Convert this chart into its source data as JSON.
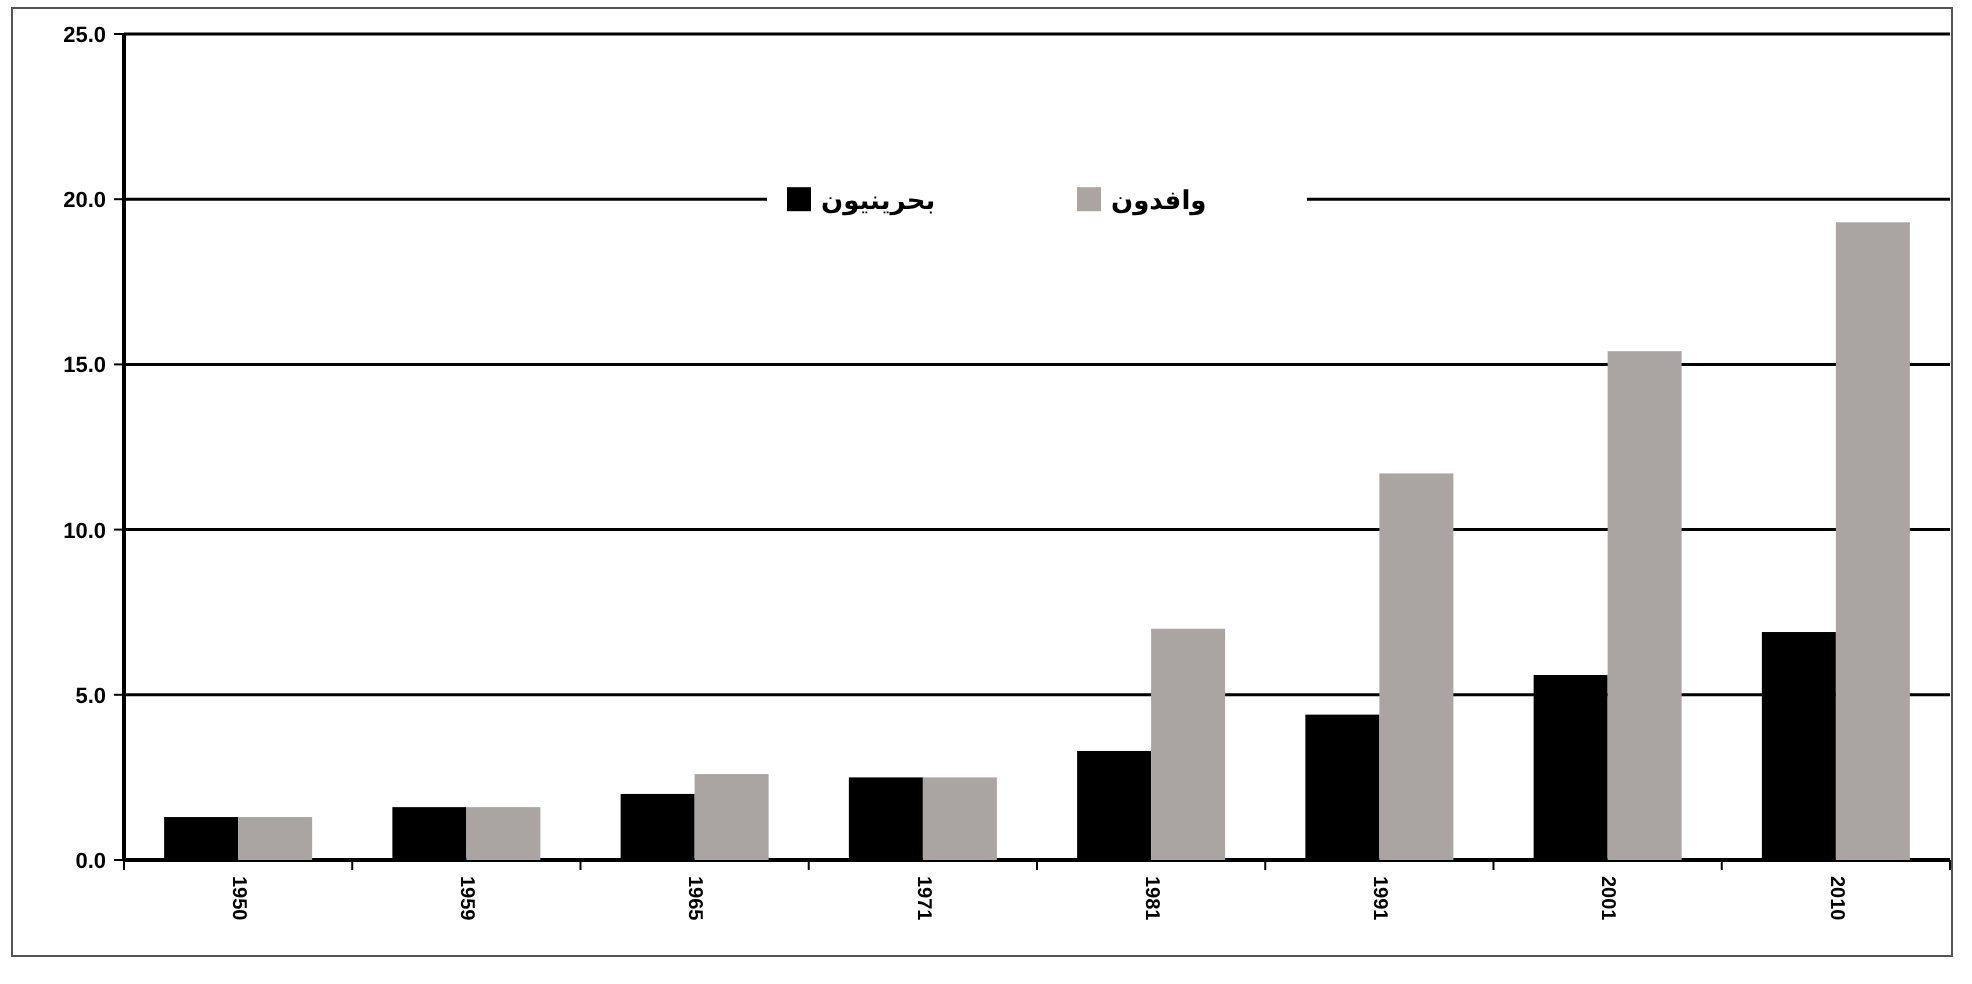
{
  "chart_data": {
    "type": "bar",
    "categories": [
      "1950",
      "1959",
      "1965",
      "1971",
      "1981",
      "1991",
      "2001",
      "2010"
    ],
    "series": [
      {
        "name": "بحرينيون",
        "color": "#000000",
        "values": [
          1.3,
          1.6,
          2.0,
          2.5,
          3.3,
          4.4,
          5.6,
          6.9
        ]
      },
      {
        "name": "وافدون",
        "color": "#aaa5a3",
        "values": [
          1.3,
          1.6,
          2.6,
          2.5,
          7.0,
          11.7,
          15.4,
          19.3
        ]
      }
    ],
    "ylim": [
      0,
      25
    ],
    "yticks": [
      {
        "value": 0,
        "label": "0.0"
      },
      {
        "value": 5,
        "label": "5.0"
      },
      {
        "value": 10,
        "label": "10.0"
      },
      {
        "value": 15,
        "label": "15.0"
      },
      {
        "value": 20,
        "label": "20.0"
      },
      {
        "value": 25,
        "label": "25.0"
      }
    ],
    "grid": "y",
    "legend": "top"
  }
}
